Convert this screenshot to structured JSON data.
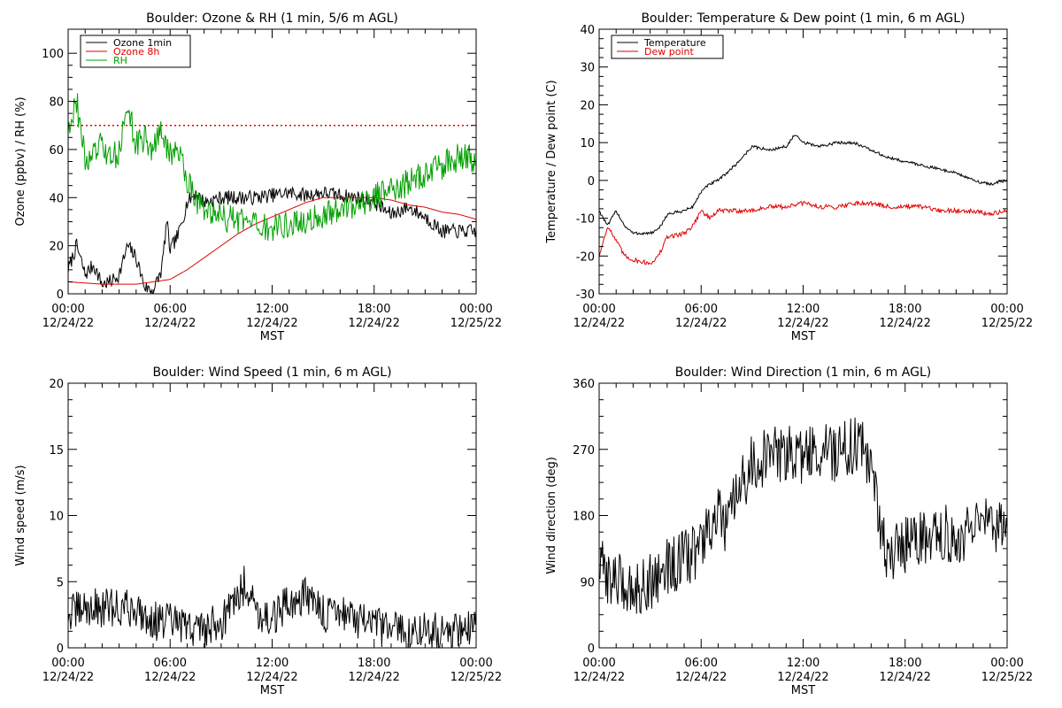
{
  "figure": {
    "background": "#ffffff"
  },
  "chart_data": [
    {
      "id": "ozone_rh",
      "type": "line",
      "title": "Boulder: Ozone & RH (1 min, 5/6 m AGL)",
      "ylabel": "Ozone (ppbv) / RH (%)",
      "xlabel": "MST",
      "xlim": [
        0,
        24
      ],
      "ylim": [
        0,
        110
      ],
      "yticks": [
        0,
        20,
        40,
        60,
        80,
        100
      ],
      "xtick_labels": [
        {
          "time": "00:00",
          "date": "12/24/22"
        },
        {
          "time": "06:00",
          "date": "12/24/22"
        },
        {
          "time": "12:00",
          "date": "12/24/22"
        },
        {
          "time": "18:00",
          "date": "12/24/22"
        },
        {
          "time": "00:00",
          "date": "12/25/22"
        }
      ],
      "legend": {
        "placement": "top-left",
        "entries": [
          "Ozone 1min",
          "Ozone 8h",
          "RH"
        ]
      },
      "reference_lines": [
        {
          "y": 70,
          "color": "#e00000",
          "style": "dotted"
        }
      ],
      "series": [
        {
          "name": "Ozone 1min",
          "color": "#000000",
          "noise": 3,
          "points": [
            [
              0,
              10
            ],
            [
              0.5,
              20
            ],
            [
              1,
              8
            ],
            [
              1.5,
              12
            ],
            [
              2,
              4
            ],
            [
              2.5,
              5
            ],
            [
              3,
              8
            ],
            [
              3.5,
              20
            ],
            [
              4,
              15
            ],
            [
              4.5,
              3
            ],
            [
              5,
              1
            ],
            [
              5.5,
              10
            ],
            [
              5.8,
              30
            ],
            [
              6,
              18
            ],
            [
              6.5,
              25
            ],
            [
              7,
              38
            ],
            [
              7.5,
              42
            ],
            [
              8,
              38
            ],
            [
              9,
              40
            ],
            [
              10,
              40
            ],
            [
              11,
              40
            ],
            [
              12,
              41
            ],
            [
              13,
              42
            ],
            [
              14,
              41
            ],
            [
              15,
              42
            ],
            [
              16,
              41
            ],
            [
              17,
              40
            ],
            [
              18,
              38
            ],
            [
              19,
              33
            ],
            [
              20,
              36
            ],
            [
              21,
              32
            ],
            [
              22,
              26
            ],
            [
              23,
              26
            ],
            [
              24,
              26
            ]
          ]
        },
        {
          "name": "Ozone 8h",
          "color": "#e00000",
          "noise": 0,
          "points": [
            [
              0,
              5
            ],
            [
              2,
              4
            ],
            [
              4,
              4
            ],
            [
              5,
              5
            ],
            [
              6,
              6
            ],
            [
              7,
              10
            ],
            [
              8,
              15
            ],
            [
              9,
              20
            ],
            [
              10,
              25
            ],
            [
              11,
              29
            ],
            [
              12,
              32
            ],
            [
              13,
              35
            ],
            [
              14,
              38
            ],
            [
              15,
              40
            ],
            [
              16,
              40
            ],
            [
              17,
              40
            ],
            [
              18,
              40
            ],
            [
              19,
              39
            ],
            [
              20,
              37
            ],
            [
              21,
              36
            ],
            [
              22,
              34
            ],
            [
              23,
              33
            ],
            [
              24,
              31
            ]
          ]
        },
        {
          "name": "RH",
          "color": "#00a000",
          "noise": 6,
          "points": [
            [
              0,
              70
            ],
            [
              0.5,
              80
            ],
            [
              1,
              55
            ],
            [
              1.5,
              58
            ],
            [
              2,
              62
            ],
            [
              2.5,
              55
            ],
            [
              3,
              60
            ],
            [
              3.5,
              78
            ],
            [
              4,
              62
            ],
            [
              4.5,
              65
            ],
            [
              5,
              60
            ],
            [
              5.5,
              68
            ],
            [
              6,
              57
            ],
            [
              6.5,
              60
            ],
            [
              7,
              48
            ],
            [
              7.5,
              40
            ],
            [
              8,
              35
            ],
            [
              9,
              32
            ],
            [
              10,
              30
            ],
            [
              11,
              28
            ],
            [
              12,
              27
            ],
            [
              13,
              29
            ],
            [
              14,
              30
            ],
            [
              15,
              32
            ],
            [
              16,
              35
            ],
            [
              17,
              38
            ],
            [
              18,
              40
            ],
            [
              19,
              44
            ],
            [
              20,
              46
            ],
            [
              21,
              50
            ],
            [
              22,
              53
            ],
            [
              23,
              57
            ],
            [
              24,
              55
            ]
          ]
        }
      ]
    },
    {
      "id": "temp_dew",
      "type": "line",
      "title": "Boulder: Temperature & Dew point (1 min, 6 m AGL)",
      "ylabel": "Temperature / Dew point (C)",
      "xlabel": "MST",
      "xlim": [
        0,
        24
      ],
      "ylim": [
        -30,
        40
      ],
      "yticks": [
        -30,
        -20,
        -10,
        0,
        10,
        20,
        30,
        40
      ],
      "xtick_labels": [
        {
          "time": "00:00",
          "date": "12/24/22"
        },
        {
          "time": "06:00",
          "date": "12/24/22"
        },
        {
          "time": "12:00",
          "date": "12/24/22"
        },
        {
          "time": "18:00",
          "date": "12/24/22"
        },
        {
          "time": "00:00",
          "date": "12/25/22"
        }
      ],
      "legend": {
        "placement": "top-left",
        "entries": [
          "Temperature",
          "Dew point"
        ]
      },
      "series": [
        {
          "name": "Temperature",
          "color": "#000000",
          "noise": 0.4,
          "points": [
            [
              0,
              -8
            ],
            [
              0.5,
              -12
            ],
            [
              1,
              -8
            ],
            [
              1.5,
              -12
            ],
            [
              2,
              -14
            ],
            [
              3,
              -14
            ],
            [
              3.5,
              -13
            ],
            [
              4,
              -9
            ],
            [
              5,
              -8
            ],
            [
              5.5,
              -7
            ],
            [
              6,
              -3
            ],
            [
              6.5,
              -1
            ],
            [
              7,
              0
            ],
            [
              8,
              4
            ],
            [
              9,
              9
            ],
            [
              10,
              8
            ],
            [
              11,
              9
            ],
            [
              11.5,
              12
            ],
            [
              12,
              10
            ],
            [
              13,
              9
            ],
            [
              14,
              10
            ],
            [
              15,
              10
            ],
            [
              16,
              8
            ],
            [
              17,
              6
            ],
            [
              18,
              5
            ],
            [
              19,
              4
            ],
            [
              20,
              3
            ],
            [
              21,
              2
            ],
            [
              22,
              0
            ],
            [
              23,
              -1
            ],
            [
              24,
              0
            ]
          ]
        },
        {
          "name": "Dew point",
          "color": "#e00000",
          "noise": 0.6,
          "points": [
            [
              0,
              -20
            ],
            [
              0.5,
              -12
            ],
            [
              1,
              -16
            ],
            [
              1.5,
              -20
            ],
            [
              2,
              -21
            ],
            [
              3,
              -22
            ],
            [
              3.5,
              -20
            ],
            [
              4,
              -15
            ],
            [
              5,
              -14
            ],
            [
              5.5,
              -12
            ],
            [
              6,
              -8
            ],
            [
              6.5,
              -10
            ],
            [
              7,
              -8
            ],
            [
              8,
              -8
            ],
            [
              9,
              -8
            ],
            [
              10,
              -7
            ],
            [
              11,
              -7
            ],
            [
              12,
              -6
            ],
            [
              13,
              -7
            ],
            [
              14,
              -7
            ],
            [
              15,
              -6
            ],
            [
              16,
              -6
            ],
            [
              17,
              -7
            ],
            [
              18,
              -7
            ],
            [
              19,
              -7
            ],
            [
              20,
              -8
            ],
            [
              21,
              -8
            ],
            [
              22,
              -8
            ],
            [
              23,
              -9
            ],
            [
              24,
              -8
            ]
          ]
        }
      ]
    },
    {
      "id": "wind_speed",
      "type": "line",
      "title": "Boulder: Wind Speed (1 min, 6 m AGL)",
      "ylabel": "Wind speed (m/s)",
      "xlabel": "MST",
      "xlim": [
        0,
        24
      ],
      "ylim": [
        0,
        20
      ],
      "yticks": [
        0,
        5,
        10,
        15,
        20
      ],
      "xtick_labels": [
        {
          "time": "00:00",
          "date": "12/24/22"
        },
        {
          "time": "06:00",
          "date": "12/24/22"
        },
        {
          "time": "12:00",
          "date": "12/24/22"
        },
        {
          "time": "18:00",
          "date": "12/24/22"
        },
        {
          "time": "00:00",
          "date": "12/25/22"
        }
      ],
      "series": [
        {
          "name": "",
          "color": "#000000",
          "noise": 1.5,
          "points": [
            [
              0,
              2.5
            ],
            [
              1,
              3
            ],
            [
              2,
              3
            ],
            [
              3,
              3
            ],
            [
              4,
              3
            ],
            [
              5,
              2
            ],
            [
              6,
              2
            ],
            [
              7,
              1.5
            ],
            [
              8,
              1.5
            ],
            [
              9,
              2
            ],
            [
              10,
              4
            ],
            [
              10.5,
              5
            ],
            [
              11,
              3
            ],
            [
              12,
              2
            ],
            [
              13,
              3.5
            ],
            [
              14,
              4
            ],
            [
              15,
              2.5
            ],
            [
              16,
              3
            ],
            [
              17,
              2
            ],
            [
              18,
              1.5
            ],
            [
              19,
              1.5
            ],
            [
              20,
              1
            ],
            [
              21,
              1.5
            ],
            [
              22,
              1
            ],
            [
              23,
              1.5
            ],
            [
              24,
              1.5
            ]
          ]
        }
      ]
    },
    {
      "id": "wind_dir",
      "type": "line",
      "title": "Boulder: Wind Direction (1 min, 6 m AGL)",
      "ylabel": "Wind direction (deg)",
      "xlabel": "MST",
      "xlim": [
        0,
        24
      ],
      "ylim": [
        0,
        360
      ],
      "yticks": [
        0,
        90,
        180,
        270,
        360
      ],
      "xtick_labels": [
        {
          "time": "00:00",
          "date": "12/24/22"
        },
        {
          "time": "06:00",
          "date": "12/24/22"
        },
        {
          "time": "12:00",
          "date": "12/24/22"
        },
        {
          "time": "18:00",
          "date": "12/24/22"
        },
        {
          "time": "00:00",
          "date": "12/25/22"
        }
      ],
      "series": [
        {
          "name": "",
          "color": "#000000",
          "noise": 40,
          "points": [
            [
              0,
              110
            ],
            [
              1,
              90
            ],
            [
              2,
              80
            ],
            [
              3,
              90
            ],
            [
              4,
              110
            ],
            [
              5,
              120
            ],
            [
              6,
              140
            ],
            [
              7,
              180
            ],
            [
              7.5,
              160
            ],
            [
              8,
              200
            ],
            [
              9,
              250
            ],
            [
              10,
              260
            ],
            [
              11,
              265
            ],
            [
              12,
              260
            ],
            [
              13,
              270
            ],
            [
              14,
              265
            ],
            [
              15,
              275
            ],
            [
              16,
              260
            ],
            [
              16.5,
              160
            ],
            [
              17,
              130
            ],
            [
              18,
              140
            ],
            [
              19,
              150
            ],
            [
              20,
              160
            ],
            [
              21,
              150
            ],
            [
              22,
              160
            ],
            [
              23,
              170
            ],
            [
              24,
              150
            ]
          ]
        }
      ]
    }
  ]
}
